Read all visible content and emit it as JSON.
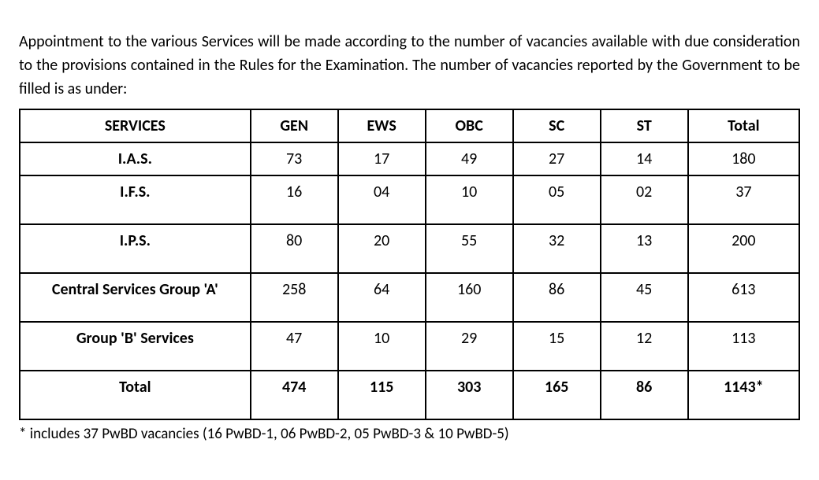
{
  "intro": "Appointment to the various Services will be made according to the number of vacancies available with due consideration to the provisions contained in  the Rules for the Examination. The number of vacancies reported by the Government to be filled is as under:",
  "table": {
    "columns": [
      "SERVICES",
      "GEN",
      "EWS",
      "OBC",
      "SC",
      "ST",
      "Total"
    ],
    "rows": [
      {
        "service": "I.A.S.",
        "gen": "73",
        "ews": "17",
        "obc": "49",
        "sc": "27",
        "st": "14",
        "total": "180"
      },
      {
        "service": "I.F.S.",
        "gen": "16",
        "ews": "04",
        "obc": "10",
        "sc": "05",
        "st": "02",
        "total": "37"
      },
      {
        "service": "I.P.S.",
        "gen": "80",
        "ews": "20",
        "obc": "55",
        "sc": "32",
        "st": "13",
        "total": "200"
      },
      {
        "service": "Central Services Group 'A'",
        "gen": "258",
        "ews": "64",
        "obc": "160",
        "sc": "86",
        "st": "45",
        "total": "613"
      },
      {
        "service": "Group 'B' Services",
        "gen": "47",
        "ews": "10",
        "obc": "29",
        "sc": "15",
        "st": "12",
        "total": "113"
      }
    ],
    "totals": {
      "service": "Total",
      "gen": "474",
      "ews": "115",
      "obc": "303",
      "sc": "165",
      "st": "86",
      "total": "1143*"
    }
  },
  "footnote": "* includes 37 PwBD vacancies (16 PwBD-1, 06 PwBD-2, 05  PwBD-3 & 10 PwBD-5)"
}
